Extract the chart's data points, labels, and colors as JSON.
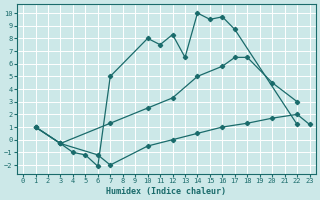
{
  "xlabel": "Humidex (Indice chaleur)",
  "xlim": [
    -0.5,
    23.5
  ],
  "ylim": [
    -2.7,
    10.7
  ],
  "xticks": [
    0,
    1,
    2,
    3,
    4,
    5,
    6,
    7,
    8,
    9,
    10,
    11,
    12,
    13,
    14,
    15,
    16,
    17,
    18,
    19,
    20,
    21,
    22,
    23
  ],
  "yticks": [
    -2,
    -1,
    0,
    1,
    2,
    3,
    4,
    5,
    6,
    7,
    8,
    9,
    10
  ],
  "bg_color": "#cce8e8",
  "grid_color": "#b0d0d0",
  "line_color": "#1a6b6b",
  "lines": [
    {
      "x": [
        1,
        3,
        4,
        5,
        6,
        7,
        10,
        11,
        12,
        13,
        14,
        15,
        16,
        17,
        22
      ],
      "y": [
        1,
        -0.3,
        -1,
        -1.2,
        -2.1,
        5.0,
        8.0,
        7.5,
        8.3,
        6.5,
        10.0,
        9.5,
        9.7,
        8.7,
        1.2
      ]
    },
    {
      "x": [
        1,
        3,
        7,
        10,
        12,
        14,
        16,
        17,
        18,
        20,
        22
      ],
      "y": [
        1,
        -0.3,
        1.3,
        2.5,
        3.3,
        5.0,
        5.8,
        6.5,
        6.5,
        4.5,
        3.0
      ]
    },
    {
      "x": [
        1,
        3,
        6,
        7,
        10,
        12,
        14,
        16,
        18,
        20,
        22,
        23
      ],
      "y": [
        1,
        -0.3,
        -1.2,
        -2.0,
        -0.5,
        0.0,
        0.5,
        1.0,
        1.3,
        1.7,
        2.0,
        1.2
      ]
    }
  ]
}
